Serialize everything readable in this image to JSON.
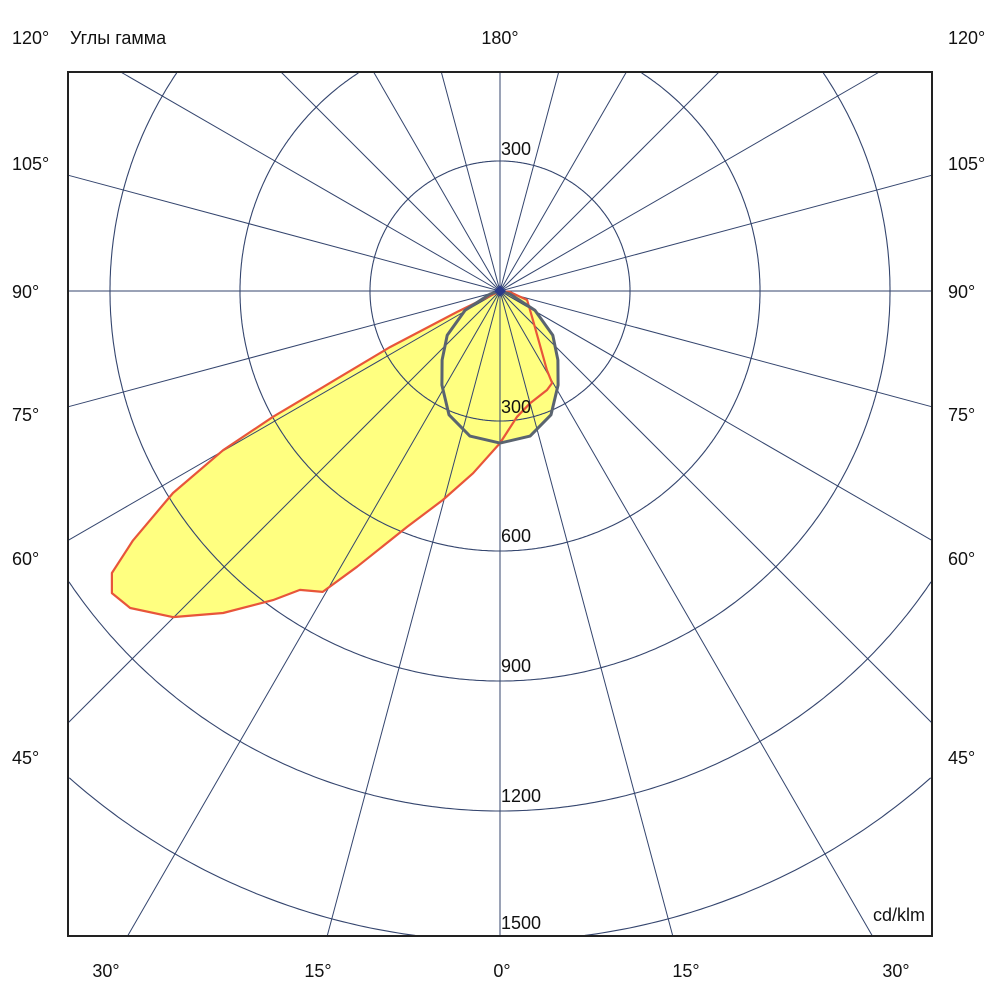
{
  "chart_data": {
    "type": "polar",
    "title": "",
    "angle_axis_label": "Углы гамма",
    "unit_label": "cd/klm",
    "radial_ticks": [
      300,
      600,
      900,
      1200,
      1500
    ],
    "radial_range": [
      0,
      1500
    ],
    "angle_grid_step_deg": 15,
    "grid": true,
    "angle_labels": {
      "top": "180°",
      "top_left": "120°",
      "top_right": "120°",
      "left": [
        "105°",
        "90°",
        "75°",
        "60°",
        "45°"
      ],
      "right": [
        "105°",
        "90°",
        "75°",
        "60°",
        "45°"
      ],
      "bottom": [
        "30°",
        "15°",
        "0°",
        "15°",
        "30°"
      ]
    },
    "ring_labels": [
      "300",
      "300",
      "600",
      "900",
      "1200",
      "1500"
    ],
    "series": [
      {
        "color": "#e8553a",
        "fill": "#ffff80",
        "left": [
          [
            0,
            351
          ],
          [
            8.4,
            425
          ],
          [
            15.3,
            500
          ],
          [
            21.5,
            585
          ],
          [
            27.4,
            717
          ],
          [
            30.5,
            806
          ],
          [
            33.8,
            830
          ],
          [
            36.3,
            885
          ],
          [
            40.7,
            980
          ],
          [
            45.1,
            1066
          ],
          [
            49.4,
            1124
          ],
          [
            52.1,
            1135
          ],
          [
            54,
            1107
          ],
          [
            55.8,
            1024
          ],
          [
            58.3,
            887
          ],
          [
            60.1,
            737
          ],
          [
            61,
            599
          ],
          [
            61.5,
            464
          ],
          [
            63,
            285
          ],
          [
            64,
            110
          ],
          [
            90,
            0
          ]
        ],
        "right": [
          [
            0,
            351
          ],
          [
            7.7,
            293
          ],
          [
            15,
            268
          ],
          [
            25.4,
            253
          ],
          [
            29.5,
            244
          ],
          [
            30.7,
            212
          ],
          [
            48.7,
            101
          ],
          [
            71.6,
            66
          ],
          [
            84,
            23
          ],
          [
            90,
            0
          ]
        ]
      },
      {
        "color": "#5a6470",
        "fill": "#ffff80",
        "left": [
          [
            0,
            351
          ],
          [
            11.7,
            342
          ],
          [
            22.4,
            309
          ],
          [
            31.7,
            255
          ],
          [
            40,
            208
          ],
          [
            50,
            159
          ],
          [
            61,
            92
          ],
          [
            73,
            24
          ],
          [
            90,
            0
          ]
        ],
        "right": [
          [
            0,
            351
          ],
          [
            11.7,
            342
          ],
          [
            22.4,
            309
          ],
          [
            31.7,
            255
          ],
          [
            40,
            208
          ],
          [
            50,
            159
          ],
          [
            61,
            92
          ],
          [
            73,
            24
          ],
          [
            90,
            0
          ]
        ]
      }
    ],
    "colors": {
      "grid": "#34456e",
      "frame": "#222222",
      "center_marker": "#2a3a8a"
    }
  }
}
